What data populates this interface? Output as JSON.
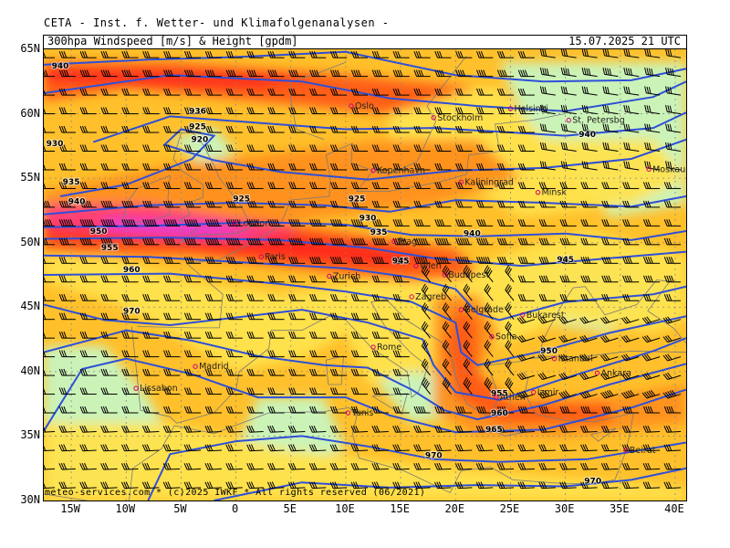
{
  "header": {
    "title": "CETA - Inst. f. Wetter- und Klimafolgenanalysen -",
    "product": "300hpa Windspeed [m/s] & Height [gpdm]",
    "valid_time": "15.07.2025 21 UTC"
  },
  "footer": {
    "copyright": "meteo-services.com * (c)2025 IWKF * All rights reserved (06/2021)"
  },
  "axes": {
    "lat_labels": [
      "65N",
      "60N",
      "55N",
      "50N",
      "45N",
      "40N",
      "35N",
      "30N"
    ],
    "lon_labels": [
      "15W",
      "10W",
      "5W",
      "0",
      "5E",
      "10E",
      "15E",
      "20E",
      "25E",
      "30E",
      "35E",
      "40E"
    ]
  },
  "map": {
    "colors": {
      "weak_green": "#c8f5c0",
      "yellow": "#ffe34d",
      "light_orange": "#ffc02b",
      "orange": "#ff8f1a",
      "red_orange": "#ff5a14",
      "red": "#ff2a1e",
      "pink": "#ff3d7a",
      "magenta": "#e040e0",
      "contour": "#2f4fd8"
    },
    "height_labels": [
      {
        "text": "940",
        "lon": -16,
        "lat": 63.5
      },
      {
        "text": "930",
        "lon": -16.5,
        "lat": 57.5
      },
      {
        "text": "935",
        "lon": -15,
        "lat": 54.5
      },
      {
        "text": "940",
        "lon": -14.5,
        "lat": 53
      },
      {
        "text": "936",
        "lon": -3.5,
        "lat": 60
      },
      {
        "text": "925",
        "lon": -3.5,
        "lat": 58.8
      },
      {
        "text": "920",
        "lon": -3.3,
        "lat": 57.8
      },
      {
        "text": "925",
        "lon": 0.5,
        "lat": 53.2
      },
      {
        "text": "925",
        "lon": 11,
        "lat": 53.2
      },
      {
        "text": "930",
        "lon": 12,
        "lat": 51.7
      },
      {
        "text": "935",
        "lon": 13,
        "lat": 50.6
      },
      {
        "text": "950",
        "lon": -12.5,
        "lat": 50.7
      },
      {
        "text": "955",
        "lon": -11.5,
        "lat": 49.4
      },
      {
        "text": "960",
        "lon": -9.5,
        "lat": 47.7
      },
      {
        "text": "945",
        "lon": 15,
        "lat": 48.4
      },
      {
        "text": "940",
        "lon": 21.5,
        "lat": 50.5
      },
      {
        "text": "945",
        "lon": 30,
        "lat": 48.5
      },
      {
        "text": "940",
        "lon": 32,
        "lat": 58.2
      },
      {
        "text": "970",
        "lon": -9.5,
        "lat": 44.5
      },
      {
        "text": "950",
        "lon": 28.5,
        "lat": 41.4
      },
      {
        "text": "955",
        "lon": 24,
        "lat": 38.1
      },
      {
        "text": "960",
        "lon": 24,
        "lat": 36.6
      },
      {
        "text": "965",
        "lon": 23.5,
        "lat": 35.3
      },
      {
        "text": "970",
        "lon": 18,
        "lat": 33.3
      },
      {
        "text": "970",
        "lon": 32.5,
        "lat": 31.3
      }
    ],
    "cities": [
      {
        "name": "Oslo",
        "lon": 10.5,
        "lat": 60.6
      },
      {
        "name": "Stockholm",
        "lon": 18,
        "lat": 59.7
      },
      {
        "name": "Helsinki",
        "lon": 25,
        "lat": 60.4
      },
      {
        "name": "St. Petersbg",
        "lon": 30.3,
        "lat": 59.5
      },
      {
        "name": "Kopenhavn",
        "lon": 12.5,
        "lat": 55.6
      },
      {
        "name": "Kaliningrad",
        "lon": 20.5,
        "lat": 54.7
      },
      {
        "name": "Minsk",
        "lon": 27.5,
        "lat": 53.9
      },
      {
        "name": "Moskau",
        "lon": 37.6,
        "lat": 55.7
      },
      {
        "name": "London",
        "lon": -0.1,
        "lat": 51.5
      },
      {
        "name": "Paris",
        "lon": 2.3,
        "lat": 48.9
      },
      {
        "name": "Prag",
        "lon": 14.4,
        "lat": 50.1
      },
      {
        "name": "Wien",
        "lon": 16.4,
        "lat": 48.2
      },
      {
        "name": "Budapest",
        "lon": 19.0,
        "lat": 47.5
      },
      {
        "name": "Zurich",
        "lon": 8.5,
        "lat": 47.4
      },
      {
        "name": "Zagreb",
        "lon": 16,
        "lat": 45.8
      },
      {
        "name": "Belgrade",
        "lon": 20.5,
        "lat": 44.8
      },
      {
        "name": "Bukarest",
        "lon": 26.1,
        "lat": 44.4
      },
      {
        "name": "Sofia",
        "lon": 23.3,
        "lat": 42.7
      },
      {
        "name": "Istanbul",
        "lon": 29,
        "lat": 41
      },
      {
        "name": "Rome",
        "lon": 12.5,
        "lat": 41.9
      },
      {
        "name": "Madrid",
        "lon": -3.7,
        "lat": 40.4
      },
      {
        "name": "Lissabon",
        "lon": -9.1,
        "lat": 38.7
      },
      {
        "name": "Tunis",
        "lon": 10.2,
        "lat": 36.8
      },
      {
        "name": "Athen",
        "lon": 23.7,
        "lat": 38
      },
      {
        "name": "Izmir",
        "lon": 27.1,
        "lat": 38.4
      },
      {
        "name": "Ankara",
        "lon": 32.9,
        "lat": 39.9
      },
      {
        "name": "Beirut",
        "lon": 35.5,
        "lat": 33.9
      }
    ]
  }
}
